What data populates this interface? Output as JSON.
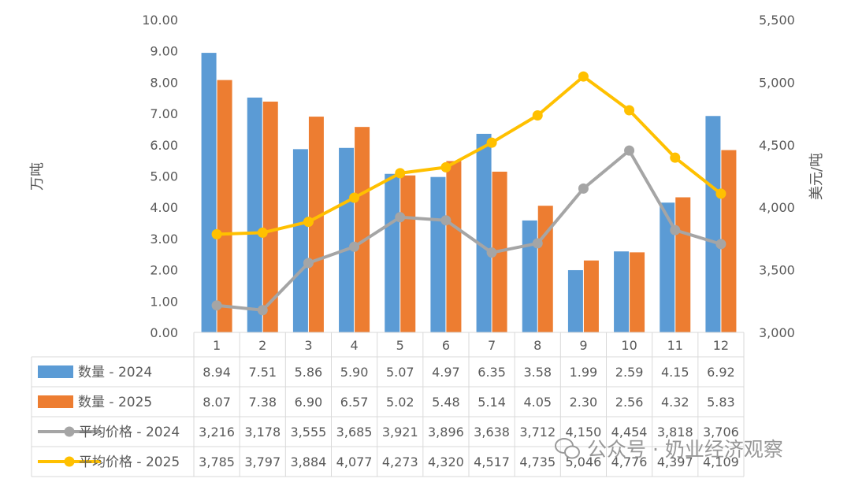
{
  "watermark": "公众号 · 奶业经济观察",
  "chart_data": {
    "type": "bar",
    "title": "",
    "categories": [
      "1",
      "2",
      "3",
      "4",
      "5",
      "6",
      "7",
      "8",
      "9",
      "10",
      "11",
      "12"
    ],
    "ylabel": "万吨",
    "y2label": "美元/吨",
    "ylim": [
      0,
      10
    ],
    "y2lim": [
      3000,
      5500
    ],
    "y_ticks": [
      "0.00",
      "1.00",
      "2.00",
      "3.00",
      "4.00",
      "5.00",
      "6.00",
      "7.00",
      "8.00",
      "9.00",
      "10.00"
    ],
    "y2_ticks": [
      "3,000",
      "3,500",
      "4,000",
      "4,500",
      "5,000",
      "5,500"
    ],
    "grid": false,
    "legend": "data-table-bottom",
    "series": [
      {
        "name": "数量 - 2024",
        "type": "bar",
        "axis": "left",
        "color": "#5B9BD5",
        "values": [
          8.94,
          7.51,
          5.86,
          5.9,
          5.07,
          4.97,
          6.35,
          3.58,
          1.99,
          2.59,
          4.15,
          6.92
        ],
        "labels": [
          "8.94",
          "7.51",
          "5.86",
          "5.90",
          "5.07",
          "4.97",
          "6.35",
          "3.58",
          "1.99",
          "2.59",
          "4.15",
          "6.92"
        ]
      },
      {
        "name": "数量 - 2025",
        "type": "bar",
        "axis": "left",
        "color": "#ED7D31",
        "values": [
          8.07,
          7.38,
          6.9,
          6.57,
          5.02,
          5.48,
          5.14,
          4.05,
          2.3,
          2.56,
          4.32,
          5.83
        ],
        "labels": [
          "8.07",
          "7.38",
          "6.90",
          "6.57",
          "5.02",
          "5.48",
          "5.14",
          "4.05",
          "2.30",
          "2.56",
          "4.32",
          "5.83"
        ]
      },
      {
        "name": "平均价格 - 2024",
        "type": "line",
        "axis": "right",
        "color": "#A5A5A5",
        "values": [
          3216,
          3178,
          3555,
          3685,
          3921,
          3896,
          3638,
          3712,
          4150,
          4454,
          3818,
          3706
        ],
        "labels": [
          "3,216",
          "3,178",
          "3,555",
          "3,685",
          "3,921",
          "3,896",
          "3,638",
          "3,712",
          "4,150",
          "4,454",
          "3,818",
          "3,706"
        ]
      },
      {
        "name": "平均价格 - 2025",
        "type": "line",
        "axis": "right",
        "color": "#FFC000",
        "values": [
          3785,
          3797,
          3884,
          4077,
          4273,
          4320,
          4517,
          4735,
          5046,
          4776,
          4397,
          4109
        ],
        "labels": [
          "3,785",
          "3,797",
          "3,884",
          "4,077",
          "4,273",
          "4,320",
          "4,517",
          "4,735",
          "5,046",
          "4,776",
          "4,397",
          "4,109"
        ]
      }
    ]
  }
}
